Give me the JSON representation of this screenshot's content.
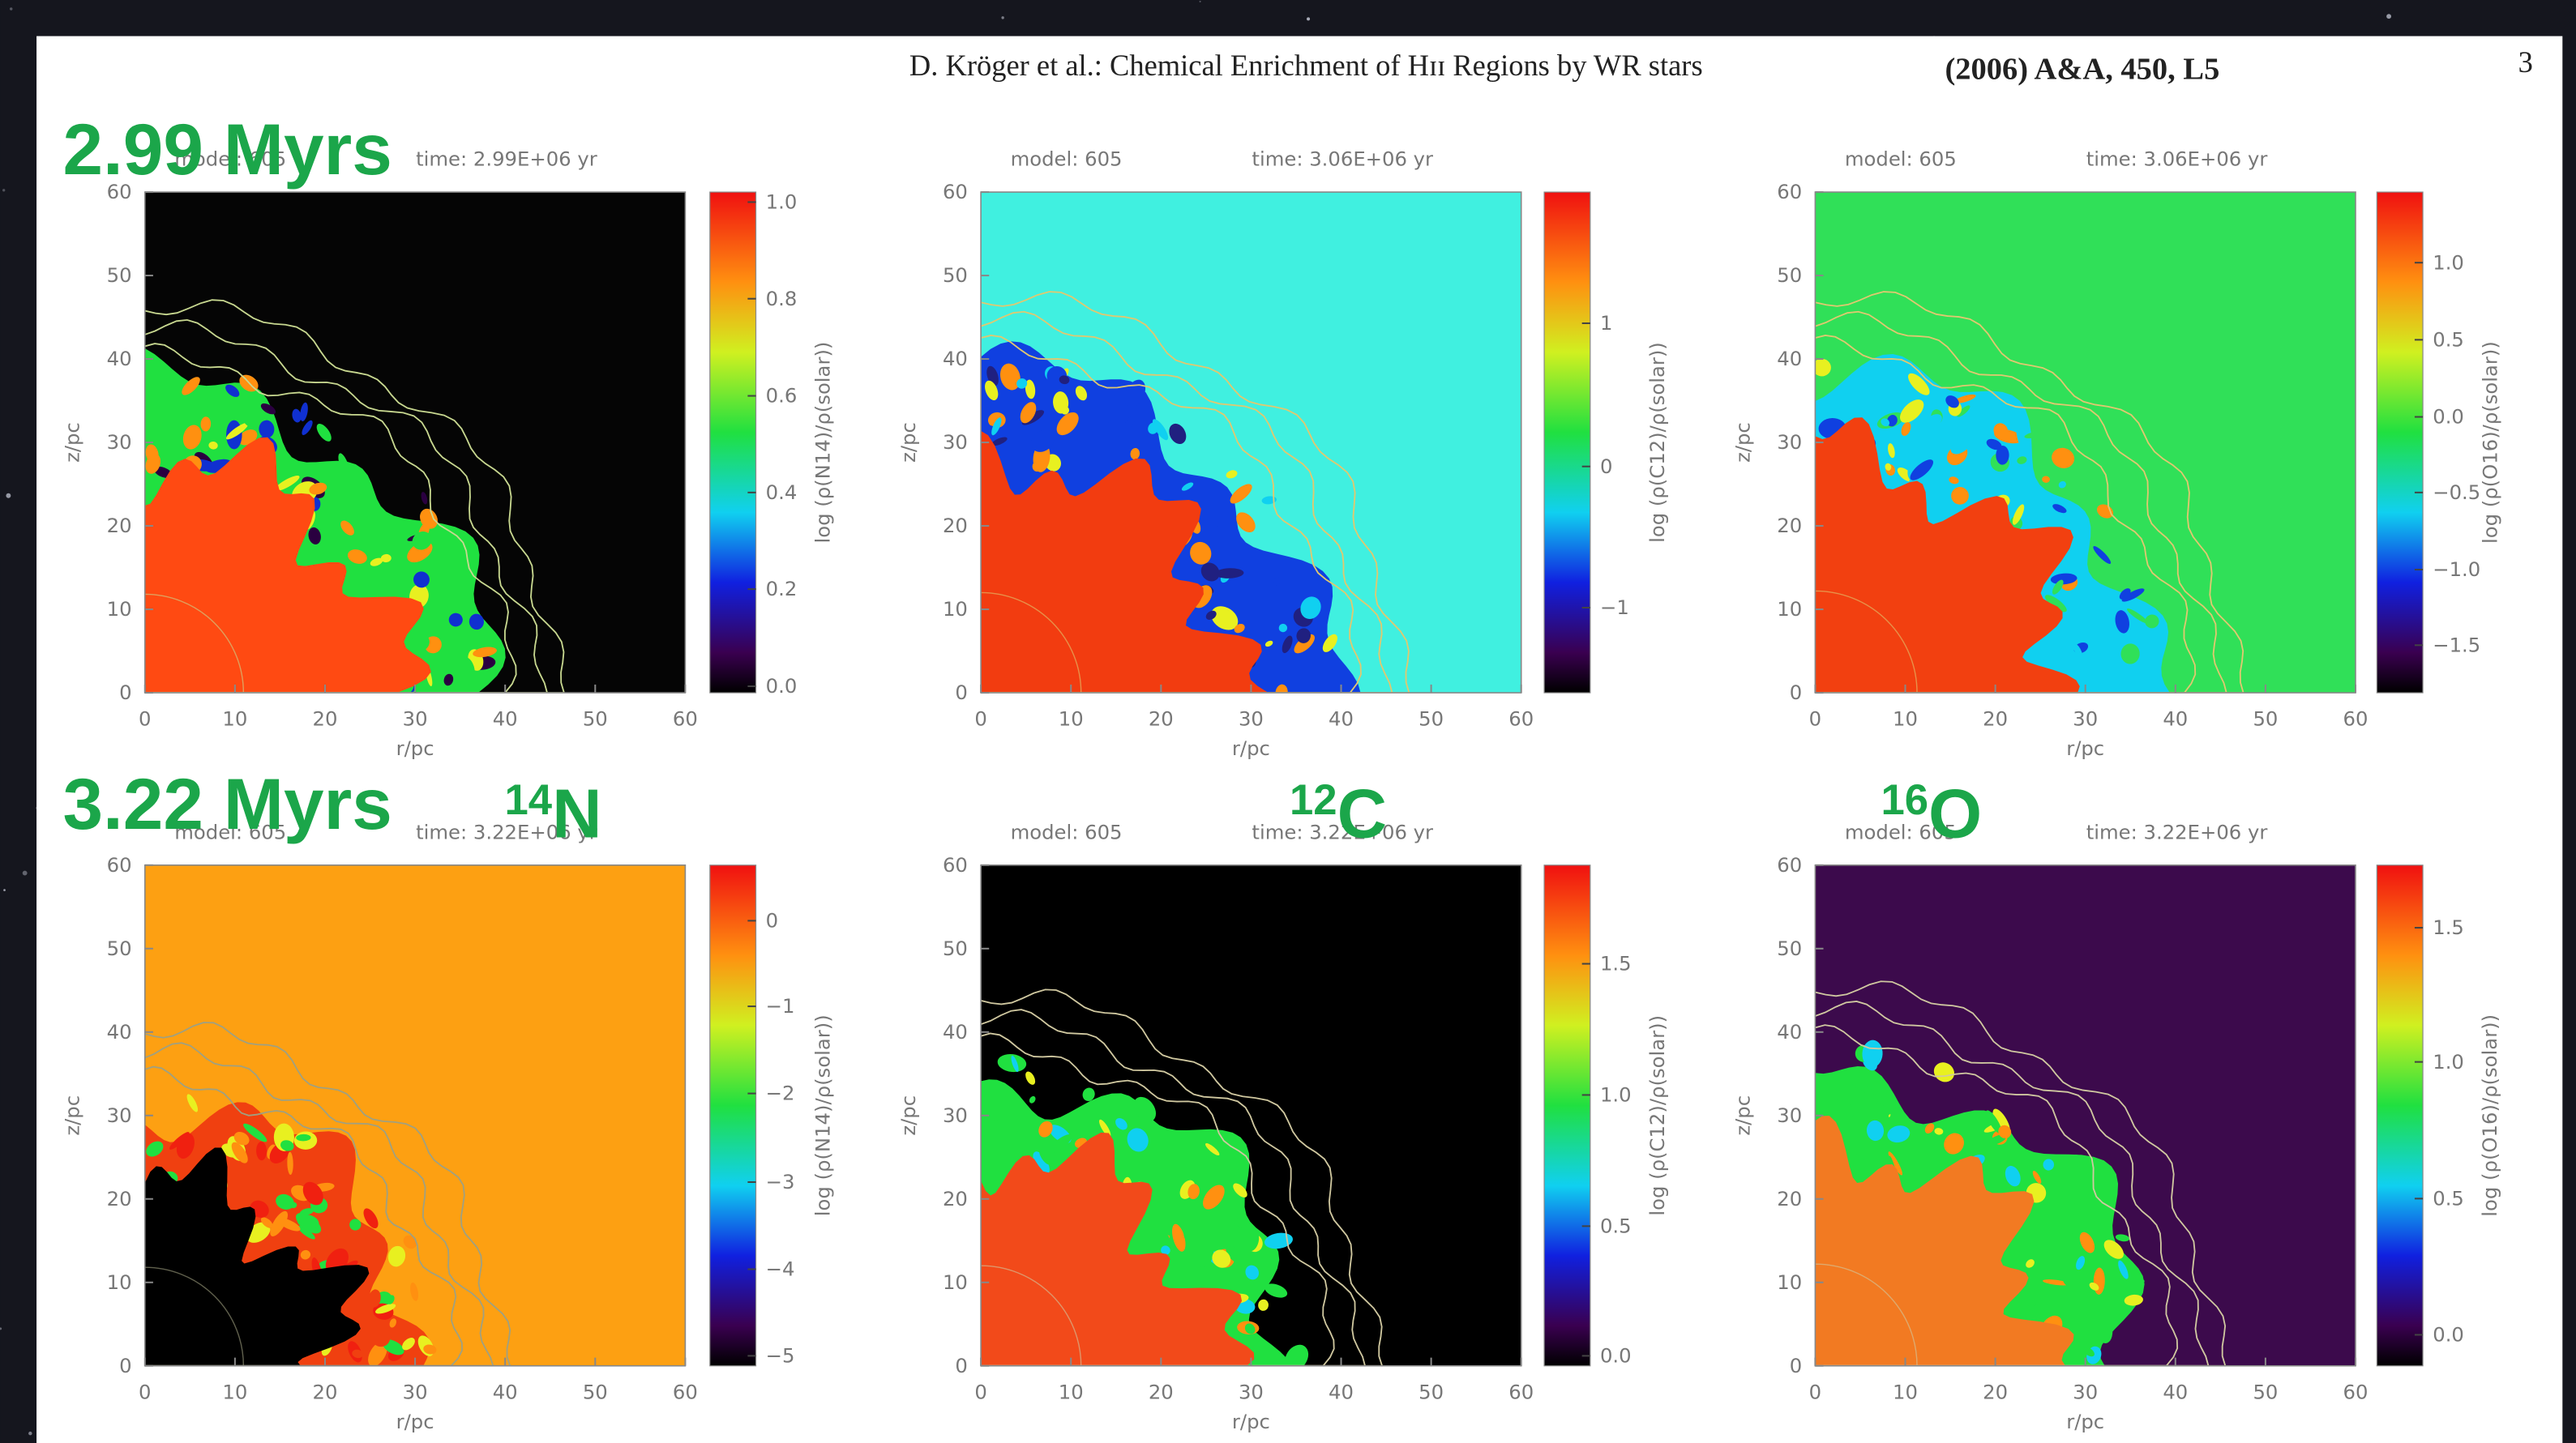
{
  "header": {
    "title": "D. Kröger et al.: Chemical Enrichment of Hɪɪ Regions by WR stars",
    "citation": "(2006) A&A, 450, L5",
    "page": "3"
  },
  "row_labels": [
    "2.99 Myrs",
    "3.22 Myrs"
  ],
  "isotopes": [
    {
      "mass": "14",
      "element": "N"
    },
    {
      "mass": "12",
      "element": "C"
    },
    {
      "mass": "16",
      "element": "O"
    }
  ],
  "panels": [
    {
      "model": "model: 605",
      "time": "time: 2.99E+06 yr",
      "xticks": [
        "0",
        "10",
        "20",
        "30",
        "40",
        "50",
        "60"
      ],
      "yticks": [
        "0",
        "10",
        "20",
        "30",
        "40",
        "50",
        "60"
      ],
      "xlabel": "r/pc",
      "ylabel": "z/pc",
      "colorbar_label": "log (ρ(N14)/ρ(solar))",
      "colorbar_ticks": [
        "1.0",
        "0.8",
        "0.6",
        "0.4",
        "0.2",
        "0.0"
      ]
    },
    {
      "model": "model: 605",
      "time": "time: 3.06E+06 yr",
      "xticks": [
        "0",
        "10",
        "20",
        "30",
        "40",
        "50",
        "60"
      ],
      "yticks": [
        "0",
        "10",
        "20",
        "30",
        "40",
        "50",
        "60"
      ],
      "xlabel": "r/pc",
      "ylabel": "z/pc",
      "colorbar_label": "log (ρ(C12)/ρ(solar))",
      "colorbar_ticks": [
        "1",
        "0",
        "−1"
      ]
    },
    {
      "model": "model: 605",
      "time": "time: 3.06E+06 yr",
      "xticks": [
        "0",
        "10",
        "20",
        "30",
        "40",
        "50",
        "60"
      ],
      "yticks": [
        "0",
        "10",
        "20",
        "30",
        "40",
        "50",
        "60"
      ],
      "xlabel": "r/pc",
      "ylabel": "z/pc",
      "colorbar_label": "log (ρ(O16)/ρ(solar))",
      "colorbar_ticks": [
        "1.0",
        "0.5",
        "0.0",
        "−0.5",
        "−1.0",
        "−1.5"
      ]
    },
    {
      "model": "model: 605",
      "time": "time: 3.22E+06 yr",
      "xticks": [
        "0",
        "10",
        "20",
        "30",
        "40",
        "50",
        "60"
      ],
      "yticks": [
        "0",
        "10",
        "20",
        "30",
        "40",
        "50",
        "60"
      ],
      "xlabel": "r/pc",
      "ylabel": "z/pc",
      "colorbar_label": "log (ρ(N14)/ρ(solar))",
      "colorbar_ticks": [
        "0",
        "−1",
        "−2",
        "−3",
        "−4",
        "−5"
      ]
    },
    {
      "model": "model: 605",
      "time": "time: 3.22E+06 yr",
      "xticks": [
        "0",
        "10",
        "20",
        "30",
        "40",
        "50",
        "60"
      ],
      "yticks": [
        "0",
        "10",
        "20",
        "30",
        "40",
        "50",
        "60"
      ],
      "xlabel": "r/pc",
      "ylabel": "z/pc",
      "colorbar_label": "log (ρ(C12)/ρ(solar))",
      "colorbar_ticks": [
        "1.5",
        "1.0",
        "0.5",
        "0.0"
      ]
    },
    {
      "model": "model: 605",
      "time": "time: 3.22E+06 yr",
      "xticks": [
        "0",
        "10",
        "20",
        "30",
        "40",
        "50",
        "60"
      ],
      "yticks": [
        "0",
        "10",
        "20",
        "30",
        "40",
        "50",
        "60"
      ],
      "xlabel": "r/pc",
      "ylabel": "z/pc",
      "colorbar_label": "log (ρ(O16)/ρ(solar))",
      "colorbar_ticks": [
        "1.5",
        "1.0",
        "0.5",
        "0.0"
      ]
    }
  ]
}
